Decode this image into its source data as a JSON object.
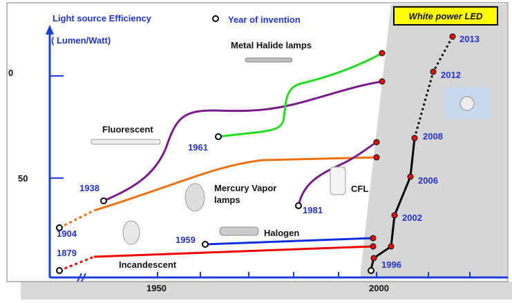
{
  "header": {
    "title": "Light source Efficiency",
    "unit": "( Lumen/Watt)",
    "legend": "Year of invention",
    "badge": "White power LED"
  },
  "axes": {
    "y_ticks": [
      "0",
      "50"
    ],
    "x_ticks": [
      "1950",
      "2000"
    ]
  },
  "lamps": {
    "metal_halide": "Metal Halide lamps",
    "fluorescent": "Fluorescent",
    "mercury": [
      "Mercury Vapor",
      "lamps"
    ],
    "cfl": "CFL",
    "halogen": "Halogen",
    "incandescent": "Incandescent"
  },
  "years": {
    "y1938": "1938",
    "y1904": "1904",
    "y1879": "1879",
    "y1961": "1961",
    "y1959": "1959",
    "y1981": "1981",
    "y1996": "1996",
    "y2002": "2002",
    "y2006": "2006",
    "y2008": "2008",
    "y2012": "2012",
    "y2013": "2013"
  }
}
